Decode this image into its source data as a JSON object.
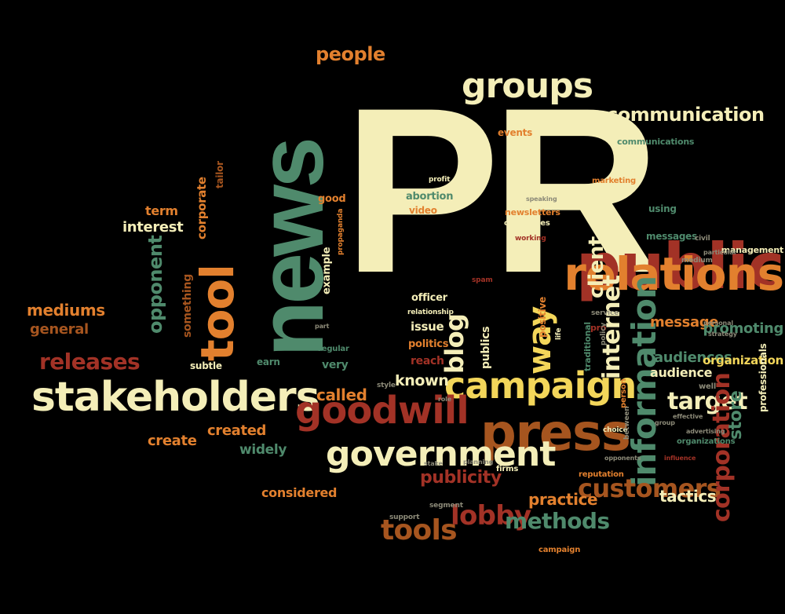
{
  "palette": {
    "background": "#000000",
    "cream": "#f4eeb8",
    "green": "#4f8a6c",
    "red": "#a23226",
    "orange": "#e2802e",
    "brown": "#a6551f",
    "yellow": "#f3d65a",
    "tan": "#c9b07a",
    "grey": "#8c8a78"
  },
  "words": [
    {
      "text": "PR",
      "color": "cream",
      "size": "xl"
    },
    {
      "text": "news",
      "color": "green",
      "size": "xl"
    },
    {
      "text": "public",
      "color": "red",
      "size": "lg"
    },
    {
      "text": "relations",
      "color": "orange",
      "size": "lg"
    },
    {
      "text": "stakeholders",
      "color": "cream",
      "size": "lg"
    },
    {
      "text": "campaign",
      "color": "yellow",
      "size": "lg"
    },
    {
      "text": "press",
      "color": "brown",
      "size": "lg"
    },
    {
      "text": "government",
      "color": "cream",
      "size": "lg"
    },
    {
      "text": "goodwill",
      "color": "red",
      "size": "lg"
    },
    {
      "text": "groups",
      "color": "cream",
      "size": "lg"
    },
    {
      "text": "tool",
      "color": "orange",
      "size": "lg"
    },
    {
      "text": "communication",
      "color": "cream",
      "size": "md"
    },
    {
      "text": "information",
      "color": "green",
      "size": "lg"
    },
    {
      "text": "internet",
      "color": "cream",
      "size": "md"
    },
    {
      "text": "customers",
      "color": "brown",
      "size": "md"
    },
    {
      "text": "releases",
      "color": "red",
      "size": "md"
    },
    {
      "text": "people",
      "color": "orange",
      "size": "md"
    },
    {
      "text": "tools",
      "color": "brown",
      "size": "md"
    },
    {
      "text": "lobby",
      "color": "red",
      "size": "md"
    },
    {
      "text": "methods",
      "color": "green",
      "size": "md"
    },
    {
      "text": "publicity",
      "color": "red",
      "size": "sm"
    },
    {
      "text": "way",
      "color": "yellow",
      "size": "md"
    },
    {
      "text": "blog",
      "color": "cream",
      "size": "md"
    },
    {
      "text": "client",
      "color": "cream",
      "size": "md"
    },
    {
      "text": "target",
      "color": "cream",
      "size": "md"
    },
    {
      "text": "corporation",
      "color": "red",
      "size": "md"
    },
    {
      "text": "audiences",
      "color": "green",
      "size": "sm"
    },
    {
      "text": "audience",
      "color": "cream",
      "size": "sm"
    },
    {
      "text": "message",
      "color": "orange",
      "size": "sm"
    },
    {
      "text": "promoting",
      "color": "green",
      "size": "sm"
    },
    {
      "text": "organization",
      "color": "yellow",
      "size": "sm"
    },
    {
      "text": "store",
      "color": "green",
      "size": "sm"
    },
    {
      "text": "tactics",
      "color": "cream",
      "size": "sm"
    },
    {
      "text": "practice",
      "color": "orange",
      "size": "sm"
    },
    {
      "text": "known",
      "color": "cream",
      "size": "sm"
    },
    {
      "text": "called",
      "color": "orange",
      "size": "sm"
    },
    {
      "text": "created",
      "color": "orange",
      "size": "sm"
    },
    {
      "text": "create",
      "color": "orange",
      "size": "sm"
    },
    {
      "text": "widely",
      "color": "green",
      "size": "sm"
    },
    {
      "text": "considered",
      "color": "orange",
      "size": "sm"
    },
    {
      "text": "mediums",
      "color": "orange",
      "size": "sm"
    },
    {
      "text": "general",
      "color": "brown",
      "size": "sm"
    },
    {
      "text": "opponent",
      "color": "green",
      "size": "sm"
    },
    {
      "text": "interest",
      "color": "cream",
      "size": "sm"
    },
    {
      "text": "term",
      "color": "orange",
      "size": "sm"
    },
    {
      "text": "corporate",
      "color": "orange",
      "size": "xs"
    },
    {
      "text": "something",
      "color": "brown",
      "size": "xs"
    },
    {
      "text": "tailor",
      "color": "brown",
      "size": "xs"
    },
    {
      "text": "example",
      "color": "cream",
      "size": "xs"
    },
    {
      "text": "good",
      "color": "orange",
      "size": "xs"
    },
    {
      "text": "abortion",
      "color": "green",
      "size": "xs"
    },
    {
      "text": "video",
      "color": "orange",
      "size": "xs"
    },
    {
      "text": "officer",
      "color": "cream",
      "size": "xs"
    },
    {
      "text": "issue",
      "color": "cream",
      "size": "xs"
    },
    {
      "text": "politics",
      "color": "orange",
      "size": "xs"
    },
    {
      "text": "reach",
      "color": "red",
      "size": "xs"
    },
    {
      "text": "very",
      "color": "green",
      "size": "xs"
    },
    {
      "text": "earn",
      "color": "green",
      "size": "xs"
    },
    {
      "text": "subtle",
      "color": "cream",
      "size": "xs"
    },
    {
      "text": "publics",
      "color": "cream",
      "size": "xs"
    },
    {
      "text": "positive",
      "color": "orange",
      "size": "xs"
    },
    {
      "text": "events",
      "color": "orange",
      "size": "xs"
    },
    {
      "text": "newsletters",
      "color": "orange",
      "size": "xs"
    },
    {
      "text": "companies",
      "color": "cream",
      "size": "xs"
    },
    {
      "text": "marketing",
      "color": "orange",
      "size": "xs"
    },
    {
      "text": "using",
      "color": "green",
      "size": "xs"
    },
    {
      "text": "messages",
      "color": "green",
      "size": "xs"
    },
    {
      "text": "communications",
      "color": "green",
      "size": "xs"
    },
    {
      "text": "management",
      "color": "cream",
      "size": "xs"
    },
    {
      "text": "professionals",
      "color": "cream",
      "size": "xs"
    },
    {
      "text": "traditional",
      "color": "green",
      "size": "xs"
    },
    {
      "text": "organizations",
      "color": "green",
      "size": "xs"
    },
    {
      "text": "reputation",
      "color": "orange",
      "size": "xs"
    },
    {
      "text": "firms",
      "color": "cream",
      "size": "xs"
    },
    {
      "text": "campaign",
      "color": "orange",
      "size": "xs"
    },
    {
      "text": "regular",
      "color": "green",
      "size": "xs"
    },
    {
      "text": "propaganda",
      "color": "orange",
      "size": "xs"
    },
    {
      "text": "relationship",
      "color": "cream",
      "size": "xs"
    },
    {
      "text": "support",
      "color": "grey",
      "size": "xs"
    },
    {
      "text": "segment",
      "color": "grey",
      "size": "xs"
    },
    {
      "text": "life",
      "color": "cream",
      "size": "xs"
    },
    {
      "text": "spam",
      "color": "red",
      "size": "xs"
    },
    {
      "text": "profit",
      "color": "cream",
      "size": "xs"
    },
    {
      "text": "working",
      "color": "red",
      "size": "xs"
    },
    {
      "text": "speaking",
      "color": "grey",
      "size": "xs"
    },
    {
      "text": "style",
      "color": "grey",
      "size": "xs"
    },
    {
      "text": "part",
      "color": "grey",
      "size": "xs"
    },
    {
      "text": "planning",
      "color": "grey",
      "size": "xs"
    },
    {
      "text": "service",
      "color": "grey",
      "size": "xs"
    },
    {
      "text": "pro",
      "color": "red",
      "size": "xs"
    },
    {
      "text": "choice",
      "color": "cream",
      "size": "xs"
    },
    {
      "text": "opponents",
      "color": "grey",
      "size": "xs"
    },
    {
      "text": "person",
      "color": "orange",
      "size": "xs"
    },
    {
      "text": "between",
      "color": "grey",
      "size": "xs"
    },
    {
      "text": "policy",
      "color": "grey",
      "size": "xs"
    },
    {
      "text": "effective",
      "color": "grey",
      "size": "xs"
    },
    {
      "text": "advertising",
      "color": "grey",
      "size": "xs"
    },
    {
      "text": "group",
      "color": "grey",
      "size": "xs"
    },
    {
      "text": "influence",
      "color": "red",
      "size": "xs"
    },
    {
      "text": "particular",
      "color": "grey",
      "size": "xs"
    },
    {
      "text": "medium",
      "color": "grey",
      "size": "xs"
    },
    {
      "text": "personal",
      "color": "grey",
      "size": "xs"
    },
    {
      "text": "strategy",
      "color": "grey",
      "size": "xs"
    },
    {
      "text": "stake",
      "color": "grey",
      "size": "xs"
    },
    {
      "text": "well",
      "color": "grey",
      "size": "xs"
    },
    {
      "text": "civil",
      "color": "grey",
      "size": "xs"
    },
    {
      "text": "role",
      "color": "grey",
      "size": "xs"
    }
  ]
}
